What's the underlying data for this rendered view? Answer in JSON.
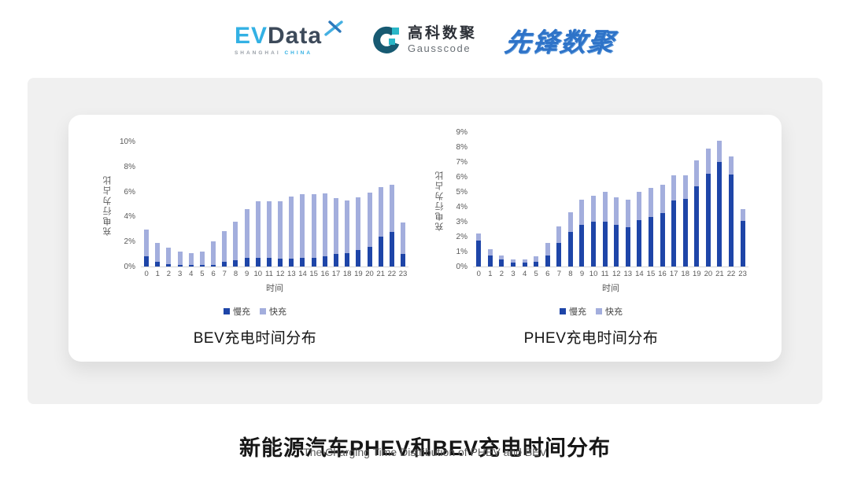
{
  "page": {
    "title_cn": "新能源汽车PHEV和BEV充电时间分布",
    "title_en": "The Charging Time Distribution of PHEV and BEV"
  },
  "header": {
    "evdata": {
      "ev": "EV",
      "data": "Data",
      "sub_left": "SHANGHAI",
      "sub_right": "CHINA"
    },
    "gausscode": {
      "cn": "高科数聚",
      "en": "Gausscode"
    },
    "xianfeng": {
      "text": "先锋数聚"
    }
  },
  "icons": {
    "evdata_x": "x-cross-icon",
    "gausscode_mark": "g-ring-icon"
  },
  "colors": {
    "slow_charge": "#1e45a8",
    "fast_charge": "#a3aedd",
    "evdata_blue": "#33b1e4",
    "evdata_dark": "#3d4a5a",
    "gauss_dark": "#175a72",
    "gauss_cyan": "#29b7c8",
    "xianfeng_blue": "#2e73c8",
    "panel_gray": "#f0f0f0",
    "axis_text": "#595959"
  },
  "chart_data": [
    {
      "type": "bar",
      "stacked": true,
      "title": "BEV充电时间分布",
      "xlabel": "时间",
      "ylabel": "充电行为占比",
      "ylim": [
        0,
        10
      ],
      "ytick_step": 2,
      "ytick_suffix": "%",
      "grid": false,
      "legend_position": "bottom",
      "categories": [
        0,
        1,
        2,
        3,
        4,
        5,
        6,
        7,
        8,
        9,
        10,
        11,
        12,
        13,
        14,
        15,
        16,
        17,
        18,
        19,
        20,
        21,
        22,
        23
      ],
      "series": [
        {
          "name": "慢充",
          "color": "#1e45a8",
          "values": [
            0.8,
            0.35,
            0.2,
            0.1,
            0.1,
            0.1,
            0.15,
            0.35,
            0.5,
            0.7,
            0.7,
            0.7,
            0.6,
            0.6,
            0.7,
            0.7,
            0.85,
            1.0,
            1.1,
            1.3,
            1.6,
            2.4,
            2.75,
            1.0
          ]
        },
        {
          "name": "快充",
          "color": "#a3aedd",
          "values": [
            2.15,
            1.55,
            1.3,
            1.1,
            1.0,
            1.1,
            1.85,
            2.45,
            3.1,
            3.9,
            4.5,
            4.55,
            4.65,
            5.0,
            5.1,
            5.1,
            5.0,
            4.5,
            4.2,
            4.25,
            4.3,
            3.95,
            3.8,
            2.55
          ]
        }
      ]
    },
    {
      "type": "bar",
      "stacked": true,
      "title": "PHEV充电时间分布",
      "xlabel": "时间",
      "ylabel": "充电行为占比",
      "ylim": [
        0,
        9
      ],
      "ytick_step": 1,
      "ytick_suffix": "%",
      "grid": false,
      "legend_position": "bottom",
      "categories": [
        0,
        1,
        2,
        3,
        4,
        5,
        6,
        7,
        8,
        9,
        10,
        11,
        12,
        13,
        14,
        15,
        16,
        17,
        18,
        19,
        20,
        21,
        22,
        23
      ],
      "series": [
        {
          "name": "慢充",
          "color": "#1e45a8",
          "values": [
            1.75,
            0.75,
            0.45,
            0.25,
            0.25,
            0.3,
            0.75,
            1.6,
            2.3,
            2.8,
            3.0,
            3.0,
            2.8,
            2.65,
            3.1,
            3.3,
            3.6,
            4.4,
            4.55,
            5.35,
            6.2,
            7.0,
            6.15,
            3.05
          ]
        },
        {
          "name": "快充",
          "color": "#a3aedd",
          "values": [
            0.45,
            0.4,
            0.3,
            0.25,
            0.25,
            0.4,
            0.85,
            1.1,
            1.35,
            1.7,
            1.75,
            2.0,
            1.85,
            1.85,
            1.9,
            1.95,
            1.9,
            1.7,
            1.55,
            1.75,
            1.7,
            1.4,
            1.2,
            0.8
          ]
        }
      ]
    }
  ]
}
